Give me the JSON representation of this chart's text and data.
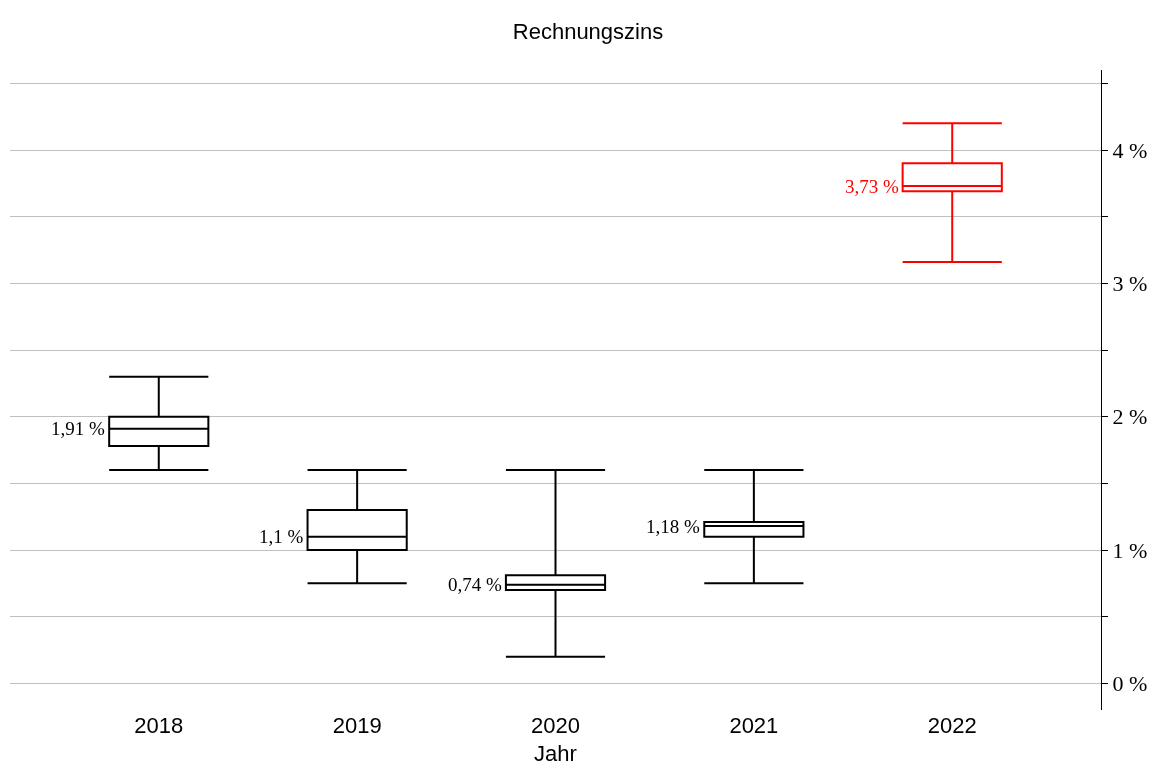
{
  "chart_data": {
    "type": "box",
    "title": "Rechnungszins",
    "xlabel": "Jahr",
    "categories": [
      "2018",
      "2019",
      "2020",
      "2021",
      "2022"
    ],
    "boxes": [
      {
        "low": 1.6,
        "q1": 1.78,
        "median": 1.91,
        "q3": 2.0,
        "high": 2.3
      },
      {
        "low": 0.75,
        "q1": 1.0,
        "median": 1.1,
        "q3": 1.3,
        "high": 1.6
      },
      {
        "low": 0.2,
        "q1": 0.7,
        "median": 0.74,
        "q3": 0.81,
        "high": 1.6
      },
      {
        "low": 0.75,
        "q1": 1.1,
        "median": 1.18,
        "q3": 1.21,
        "high": 1.6
      },
      {
        "low": 3.16,
        "q1": 3.69,
        "median": 3.73,
        "q3": 3.9,
        "high": 4.2
      }
    ],
    "colors": [
      "#000000",
      "#000000",
      "#000000",
      "#000000",
      "#ff0000"
    ],
    "value_labels": [
      "1,91 %",
      "1,1 %",
      "0,74 %",
      "1,18 %",
      "3,73 %"
    ],
    "ylim": [
      -0.2,
      4.6
    ],
    "yticks": [
      {
        "value": 0,
        "label": "0 %"
      },
      {
        "value": 0.5,
        "label": null
      },
      {
        "value": 1,
        "label": "1 %"
      },
      {
        "value": 1.5,
        "label": null
      },
      {
        "value": 2,
        "label": "2 %"
      },
      {
        "value": 2.5,
        "label": null
      },
      {
        "value": 3,
        "label": "3 %"
      },
      {
        "value": 3.5,
        "label": null
      },
      {
        "value": 4,
        "label": "4 %"
      },
      {
        "value": 4.5,
        "label": null
      }
    ],
    "grid": "y",
    "legend": false
  }
}
